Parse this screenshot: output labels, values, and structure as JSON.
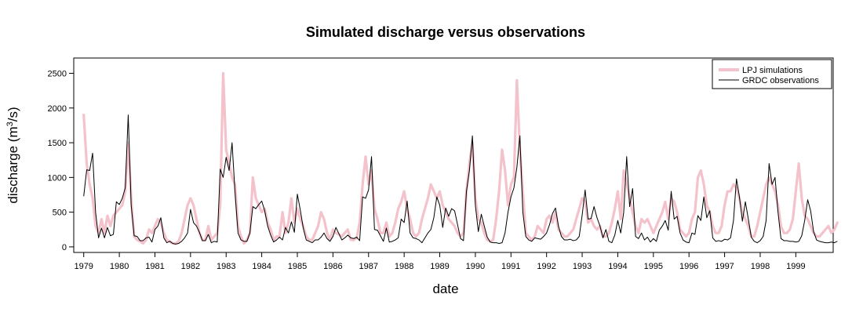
{
  "chart_data": {
    "type": "line",
    "title": "Simulated discharge versus observations",
    "xlabel": "date",
    "ylabel": "discharge (m³/s)",
    "ylabel_parts": {
      "pre": "discharge (m",
      "sup": "3",
      "post": "/s)"
    },
    "xlim": [
      1978.72,
      2000.05
    ],
    "ylim": [
      -80,
      2720
    ],
    "x_ticks": [
      1979,
      1980,
      1981,
      1982,
      1983,
      1984,
      1985,
      1986,
      1987,
      1988,
      1989,
      1990,
      1991,
      1992,
      1993,
      1994,
      1995,
      1996,
      1997,
      1998,
      1999
    ],
    "x_tick_labels": [
      "1979",
      "1980",
      "1981",
      "1982",
      "1983",
      "1984",
      "1985",
      "1986",
      "1987",
      "1988",
      "1989",
      "1990",
      "1991",
      "1992",
      "1993",
      "1994",
      "1995",
      "1996",
      "1997",
      "1998",
      "1999"
    ],
    "y_ticks": [
      0,
      500,
      1000,
      1500,
      2000,
      2500
    ],
    "y_tick_labels": [
      "0",
      "500",
      "1000",
      "1500",
      "2000",
      "2500"
    ],
    "grid": false,
    "legend": {
      "position": "top-right",
      "entries": [
        "LPJ simulations",
        "GRDC observations"
      ]
    },
    "x_start": 1979.0,
    "x_step": 0.0833333,
    "series": [
      {
        "name": "GRDC observations",
        "color": "#000000",
        "values": [
          730,
          1110,
          1100,
          1350,
          500,
          130,
          270,
          130,
          280,
          160,
          180,
          650,
          610,
          700,
          850,
          1900,
          600,
          160,
          150,
          90,
          90,
          130,
          140,
          70,
          250,
          300,
          420,
          130,
          60,
          80,
          50,
          40,
          50,
          80,
          130,
          200,
          540,
          350,
          300,
          210,
          90,
          90,
          180,
          60,
          80,
          70,
          1120,
          1000,
          1290,
          1100,
          1500,
          780,
          200,
          100,
          80,
          80,
          200,
          580,
          550,
          610,
          660,
          520,
          300,
          170,
          70,
          100,
          140,
          100,
          280,
          200,
          360,
          210,
          760,
          530,
          270,
          100,
          80,
          60,
          100,
          100,
          140,
          200,
          120,
          80,
          150,
          280,
          190,
          100,
          130,
          170,
          130,
          120,
          140,
          90,
          720,
          700,
          820,
          1300,
          250,
          240,
          160,
          80,
          270,
          70,
          80,
          100,
          130,
          400,
          350,
          660,
          200,
          130,
          120,
          100,
          60,
          130,
          200,
          250,
          420,
          720,
          600,
          280,
          560,
          440,
          550,
          520,
          320,
          120,
          90,
          800,
          1100,
          1600,
          600,
          220,
          470,
          300,
          140,
          70,
          60,
          60,
          50,
          60,
          200,
          500,
          720,
          850,
          1150,
          1600,
          500,
          150,
          100,
          80,
          130,
          120,
          110,
          150,
          200,
          320,
          480,
          560,
          300,
          150,
          100,
          100,
          110,
          90,
          100,
          150,
          460,
          820,
          400,
          410,
          580,
          420,
          300,
          130,
          250,
          80,
          60,
          170,
          380,
          200,
          500,
          1300,
          580,
          840,
          150,
          120,
          200,
          100,
          140,
          70,
          120,
          80,
          240,
          300,
          380,
          240,
          800,
          400,
          440,
          200,
          100,
          70,
          60,
          200,
          180,
          450,
          380,
          720,
          420,
          520,
          130,
          80,
          90,
          80,
          110,
          100,
          130,
          380,
          980,
          720,
          370,
          650,
          400,
          140,
          80,
          60,
          90,
          150,
          380,
          1200,
          900,
          1000,
          500,
          120,
          90,
          90,
          80,
          80,
          70,
          80,
          160,
          380,
          680,
          520,
          220,
          100,
          80,
          70,
          60,
          60,
          70,
          60,
          80
        ]
      },
      {
        "name": "LPJ simulations",
        "color": "#f4c2cb",
        "values": [
          1900,
          1200,
          900,
          700,
          300,
          200,
          400,
          200,
          450,
          300,
          450,
          500,
          550,
          600,
          800,
          1500,
          700,
          150,
          100,
          80,
          50,
          100,
          250,
          200,
          300,
          400,
          350,
          200,
          100,
          80,
          50,
          50,
          80,
          200,
          400,
          600,
          700,
          600,
          400,
          200,
          100,
          100,
          300,
          100,
          150,
          200,
          600,
          2500,
          1400,
          1200,
          1000,
          900,
          300,
          150,
          50,
          100,
          200,
          1000,
          700,
          600,
          500,
          550,
          350,
          250,
          100,
          150,
          150,
          500,
          200,
          350,
          700,
          350,
          550,
          400,
          300,
          150,
          100,
          100,
          200,
          300,
          500,
          400,
          200,
          100,
          250,
          200,
          180,
          150,
          200,
          250,
          100,
          100,
          130,
          350,
          900,
          1300,
          900,
          1100,
          550,
          400,
          200,
          200,
          350,
          150,
          200,
          350,
          550,
          650,
          800,
          550,
          400,
          200,
          150,
          200,
          400,
          550,
          700,
          900,
          800,
          700,
          800,
          600,
          500,
          400,
          350,
          300,
          200,
          150,
          200,
          800,
          1200,
          1500,
          700,
          400,
          350,
          200,
          100,
          80,
          100,
          400,
          800,
          1400,
          1100,
          600,
          900,
          1000,
          2400,
          1400,
          800,
          200,
          150,
          100,
          150,
          300,
          250,
          200,
          400,
          450,
          350,
          500,
          250,
          200,
          150,
          150,
          200,
          250,
          400,
          550,
          700,
          650,
          350,
          400,
          300,
          250,
          300,
          150,
          150,
          200,
          350,
          550,
          800,
          400,
          1100,
          900,
          700,
          500,
          300,
          200,
          400,
          350,
          400,
          300,
          200,
          300,
          400,
          500,
          650,
          400,
          700,
          650,
          500,
          250,
          200,
          150,
          200,
          400,
          500,
          1000,
          1100,
          900,
          600,
          500,
          300,
          200,
          200,
          300,
          600,
          800,
          800,
          900,
          850,
          700,
          500,
          400,
          300,
          150,
          150,
          300,
          500,
          700,
          900,
          1000,
          900,
          800,
          600,
          300,
          200,
          200,
          250,
          400,
          800,
          1200,
          700,
          450,
          400,
          300,
          200,
          150,
          150,
          200,
          250,
          300,
          200,
          250,
          350
        ]
      }
    ]
  }
}
